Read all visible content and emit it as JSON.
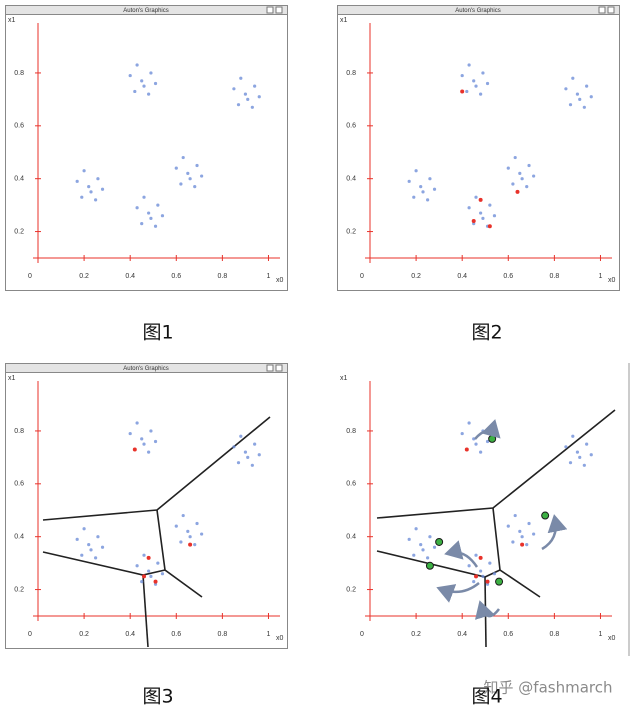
{
  "chart_data": [
    {
      "type": "scatter",
      "title": "Auton's Graphics",
      "caption": "图1",
      "xlabel": "x0",
      "ylabel": "x1",
      "xlim": [
        0,
        1.05
      ],
      "ylim": [
        0.1,
        0.97
      ],
      "xticks": [
        0,
        0.2,
        0.4,
        0.6,
        0.8,
        1
      ],
      "yticks": [
        0.2,
        0.4,
        0.6,
        0.8
      ],
      "series": [
        {
          "color": "#6f8fd8",
          "x": [
            0.45,
            0.49,
            0.4,
            0.48,
            0.42,
            0.51,
            0.43,
            0.46,
            0.9,
            0.94,
            0.85,
            0.93,
            0.87,
            0.96,
            0.88,
            0.91,
            0.22,
            0.26,
            0.17,
            0.25,
            0.19,
            0.28,
            0.2,
            0.23,
            0.48,
            0.52,
            0.43,
            0.51,
            0.45,
            0.54,
            0.46,
            0.49,
            0.65,
            0.69,
            0.6,
            0.68,
            0.62,
            0.71,
            0.63,
            0.66
          ],
          "values": [
            0.77,
            0.8,
            0.79,
            0.72,
            0.73,
            0.76,
            0.83,
            0.75,
            0.72,
            0.75,
            0.74,
            0.67,
            0.68,
            0.71,
            0.78,
            0.7,
            0.37,
            0.4,
            0.39,
            0.32,
            0.33,
            0.36,
            0.43,
            0.35,
            0.27,
            0.3,
            0.29,
            0.22,
            0.23,
            0.26,
            0.33,
            0.25,
            0.42,
            0.45,
            0.44,
            0.37,
            0.38,
            0.41,
            0.48,
            0.4
          ]
        }
      ]
    },
    {
      "type": "scatter",
      "title": "Auton's Graphics",
      "caption": "图2",
      "xlabel": "x0",
      "ylabel": "x1",
      "xlim": [
        0,
        1.05
      ],
      "ylim": [
        0.1,
        0.97
      ],
      "xticks": [
        0,
        0.2,
        0.4,
        0.6,
        0.8,
        1
      ],
      "yticks": [
        0.2,
        0.4,
        0.6,
        0.8
      ],
      "series": [
        {
          "color": "#6f8fd8",
          "x": [
            0.45,
            0.49,
            0.4,
            0.48,
            0.42,
            0.51,
            0.43,
            0.46,
            0.9,
            0.94,
            0.85,
            0.93,
            0.87,
            0.96,
            0.88,
            0.91,
            0.22,
            0.26,
            0.17,
            0.25,
            0.19,
            0.28,
            0.2,
            0.23,
            0.48,
            0.52,
            0.43,
            0.51,
            0.45,
            0.54,
            0.46,
            0.49,
            0.65,
            0.69,
            0.6,
            0.68,
            0.62,
            0.71,
            0.63,
            0.66
          ],
          "values": [
            0.77,
            0.8,
            0.79,
            0.72,
            0.73,
            0.76,
            0.83,
            0.75,
            0.72,
            0.75,
            0.74,
            0.67,
            0.68,
            0.71,
            0.78,
            0.7,
            0.37,
            0.4,
            0.39,
            0.32,
            0.33,
            0.36,
            0.43,
            0.35,
            0.27,
            0.3,
            0.29,
            0.22,
            0.23,
            0.26,
            0.33,
            0.25,
            0.42,
            0.45,
            0.44,
            0.37,
            0.38,
            0.41,
            0.48,
            0.4
          ]
        },
        {
          "color": "#e8322a",
          "x": [
            0.4,
            0.48,
            0.45,
            0.52,
            0.64
          ],
          "values": [
            0.73,
            0.32,
            0.24,
            0.22,
            0.35
          ]
        }
      ]
    },
    {
      "type": "scatter",
      "title": "Auton's Graphics",
      "caption": "图3",
      "xlabel": "x0",
      "ylabel": "x1",
      "xlim": [
        0,
        1.05
      ],
      "ylim": [
        0.1,
        0.97
      ],
      "xticks": [
        0,
        0.2,
        0.4,
        0.6,
        0.8,
        1
      ],
      "yticks": [
        0.2,
        0.4,
        0.6,
        0.8
      ],
      "series": [
        {
          "color": "#6f8fd8",
          "x": [
            0.45,
            0.49,
            0.4,
            0.48,
            0.42,
            0.51,
            0.43,
            0.46,
            0.9,
            0.94,
            0.85,
            0.93,
            0.87,
            0.96,
            0.88,
            0.91,
            0.22,
            0.26,
            0.17,
            0.25,
            0.19,
            0.28,
            0.2,
            0.23,
            0.48,
            0.52,
            0.43,
            0.51,
            0.45,
            0.54,
            0.46,
            0.49,
            0.65,
            0.69,
            0.6,
            0.68,
            0.62,
            0.71,
            0.63,
            0.66
          ],
          "values": [
            0.77,
            0.8,
            0.79,
            0.72,
            0.73,
            0.76,
            0.83,
            0.75,
            0.72,
            0.75,
            0.74,
            0.67,
            0.68,
            0.71,
            0.78,
            0.7,
            0.37,
            0.4,
            0.39,
            0.32,
            0.33,
            0.36,
            0.43,
            0.35,
            0.27,
            0.3,
            0.29,
            0.22,
            0.23,
            0.26,
            0.33,
            0.25,
            0.42,
            0.45,
            0.44,
            0.37,
            0.38,
            0.41,
            0.48,
            0.4
          ]
        },
        {
          "color": "#e8322a",
          "x": [
            0.42,
            0.48,
            0.46,
            0.51,
            0.66
          ],
          "values": [
            0.73,
            0.32,
            0.25,
            0.23,
            0.37
          ]
        }
      ]
    },
    {
      "type": "scatter",
      "caption": "图4",
      "xlabel": "x0",
      "ylabel": "x1",
      "xlim": [
        0,
        1.05
      ],
      "ylim": [
        0.1,
        0.97
      ],
      "xticks": [
        0,
        0.2,
        0.4,
        0.6,
        0.8,
        1
      ],
      "yticks": [
        0.2,
        0.4,
        0.6,
        0.8
      ],
      "series": [
        {
          "color": "#6f8fd8",
          "x": [
            0.45,
            0.49,
            0.4,
            0.48,
            0.42,
            0.51,
            0.43,
            0.46,
            0.9,
            0.94,
            0.85,
            0.93,
            0.87,
            0.96,
            0.88,
            0.91,
            0.22,
            0.26,
            0.17,
            0.25,
            0.19,
            0.28,
            0.2,
            0.23,
            0.48,
            0.52,
            0.43,
            0.51,
            0.45,
            0.54,
            0.46,
            0.49,
            0.65,
            0.69,
            0.6,
            0.68,
            0.62,
            0.71,
            0.63,
            0.66
          ],
          "values": [
            0.77,
            0.8,
            0.79,
            0.72,
            0.73,
            0.76,
            0.83,
            0.75,
            0.72,
            0.75,
            0.74,
            0.67,
            0.68,
            0.71,
            0.78,
            0.7,
            0.37,
            0.4,
            0.39,
            0.32,
            0.33,
            0.36,
            0.43,
            0.35,
            0.27,
            0.3,
            0.29,
            0.22,
            0.23,
            0.26,
            0.33,
            0.25,
            0.42,
            0.45,
            0.44,
            0.37,
            0.38,
            0.41,
            0.48,
            0.4
          ]
        },
        {
          "color": "#e8322a",
          "x": [
            0.42,
            0.48,
            0.46,
            0.51,
            0.66
          ],
          "values": [
            0.73,
            0.32,
            0.25,
            0.23,
            0.37
          ]
        },
        {
          "color": "#3cb043",
          "x": [
            0.53,
            0.3,
            0.26,
            0.56,
            0.76
          ],
          "values": [
            0.77,
            0.38,
            0.29,
            0.23,
            0.48
          ]
        }
      ]
    }
  ],
  "watermark": "知乎 @fashmarch"
}
